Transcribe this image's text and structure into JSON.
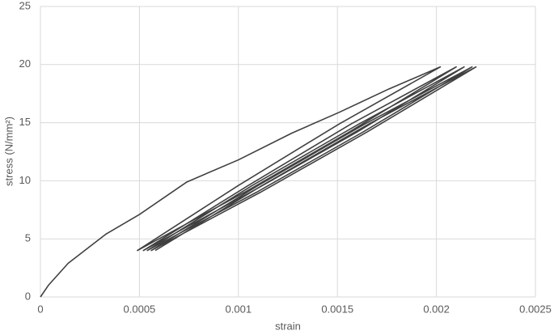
{
  "chart_data": {
    "type": "line",
    "x_label": "strain",
    "y_label": "stress (N/mm²)",
    "x": [
      0,
      4e-05,
      0.00014,
      0.00033,
      0.0005,
      0.00074,
      0.001,
      0.00127,
      0.00151,
      0.00176,
      0.00202,
      0.00151,
      0.001,
      0.00049,
      0.00103,
      0.00156,
      0.0021,
      0.00157,
      0.00105,
      0.00052,
      0.00106,
      0.0016,
      0.00214,
      0.00161,
      0.00107,
      0.00054,
      0.00109,
      0.00163,
      0.00218,
      0.00164,
      0.0011,
      0.00056,
      0.00111,
      0.00165,
      0.0022,
      0.00166,
      0.00112,
      0.00058
    ],
    "series": [
      {
        "color": "#404040",
        "values": [
          0,
          1,
          2.9,
          5.4,
          7.1,
          9.9,
          11.8,
          14.1,
          15.9,
          17.9,
          19.8,
          14.9,
          9.6,
          4,
          9,
          14.2,
          19.8,
          14.9,
          9.6,
          4,
          9,
          14.2,
          19.8,
          14.9,
          9.6,
          4,
          9,
          14.2,
          19.8,
          14.9,
          9.6,
          4,
          9,
          14.2,
          19.8,
          14.9,
          9.6,
          4
        ]
      }
    ],
    "xlim": [
      0,
      0.0025
    ],
    "xticks": [
      0,
      0.0005,
      0.001,
      0.0015,
      0.002,
      0.0025
    ],
    "ylim": [
      0,
      25
    ],
    "yticks": [
      0,
      5,
      10,
      15,
      20,
      25
    ],
    "grid": true
  }
}
